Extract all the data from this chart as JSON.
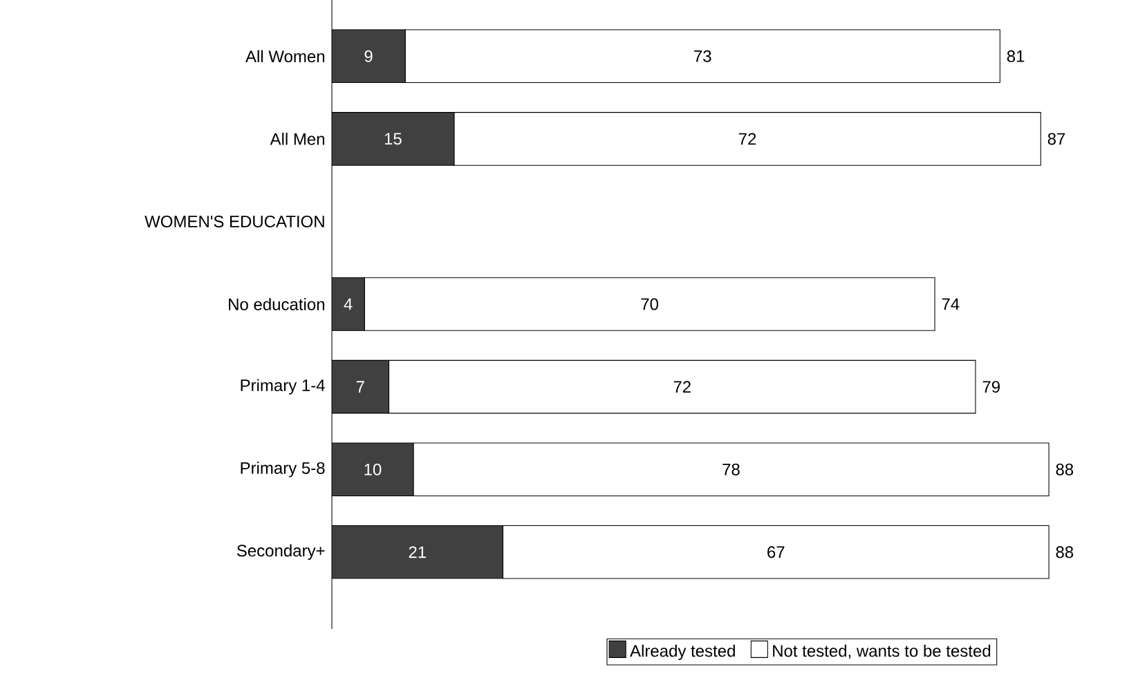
{
  "chart_data": {
    "type": "bar",
    "orientation": "horizontal",
    "stacked": true,
    "categories": [
      "All Women",
      "All Men",
      "WOMEN'S EDUCATION",
      "No education",
      "Primary 1-4",
      "Primary 5-8",
      "Secondary+"
    ],
    "series": [
      {
        "name": "Already tested",
        "color": "#404040",
        "values": [
          9,
          15,
          null,
          4,
          7,
          10,
          21
        ]
      },
      {
        "name": "Not tested, wants to be tested",
        "color": "#ffffff",
        "values": [
          73,
          72,
          null,
          70,
          72,
          78,
          67
        ]
      }
    ],
    "totals": [
      "81",
      "87",
      null,
      "74",
      "79",
      "88",
      "88"
    ],
    "data_labels": true,
    "tick_labels": "y",
    "legend": "bottom"
  }
}
